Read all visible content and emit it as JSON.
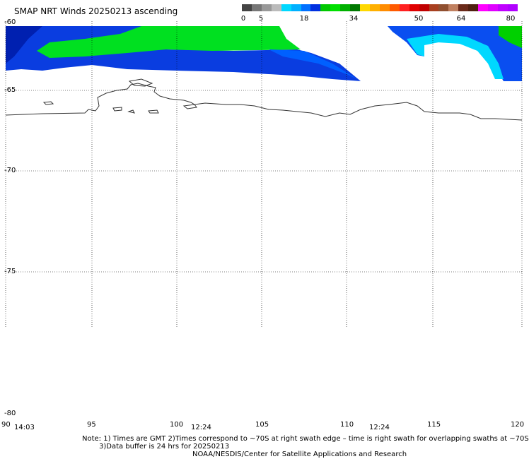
{
  "title": "SMAP NRT Winds 20250213 ascending",
  "colorbar": {
    "labels": [
      "0",
      "5",
      "18",
      "34",
      "50",
      "64",
      "80"
    ],
    "colors": [
      "#444444",
      "#777777",
      "#999999",
      "#bbbbbb",
      "#00d8ff",
      "#00b0ff",
      "#0070ff",
      "#0030e0",
      "#00c800",
      "#00e000",
      "#00b000",
      "#007800",
      "#ffd800",
      "#ffb000",
      "#ff8c00",
      "#ff5a00",
      "#ff2020",
      "#e00000",
      "#c00000",
      "#a84020",
      "#905030",
      "#c08060",
      "#6a2a1a",
      "#502010",
      "#ff00ff",
      "#e000ff",
      "#c000ff",
      "#b000ff"
    ]
  },
  "lat_labels": [
    "-60",
    "-65",
    "-70",
    "-75",
    "-80"
  ],
  "lon_labels": [
    "90",
    "95",
    "100",
    "105",
    "110",
    "115",
    "120"
  ],
  "time_labels": [
    "14:03",
    "12:24",
    "12:24"
  ],
  "notes": [
    "Note: 1) Times are GMT 2)Times correspond to ~70S at right swath edge – time is right swath for overlapping swaths at ~70S",
    "3)Data buffer is 24 hrs for 20250213",
    "NOAA/NESDIS/Center for Satellite Applications and Research"
  ]
}
